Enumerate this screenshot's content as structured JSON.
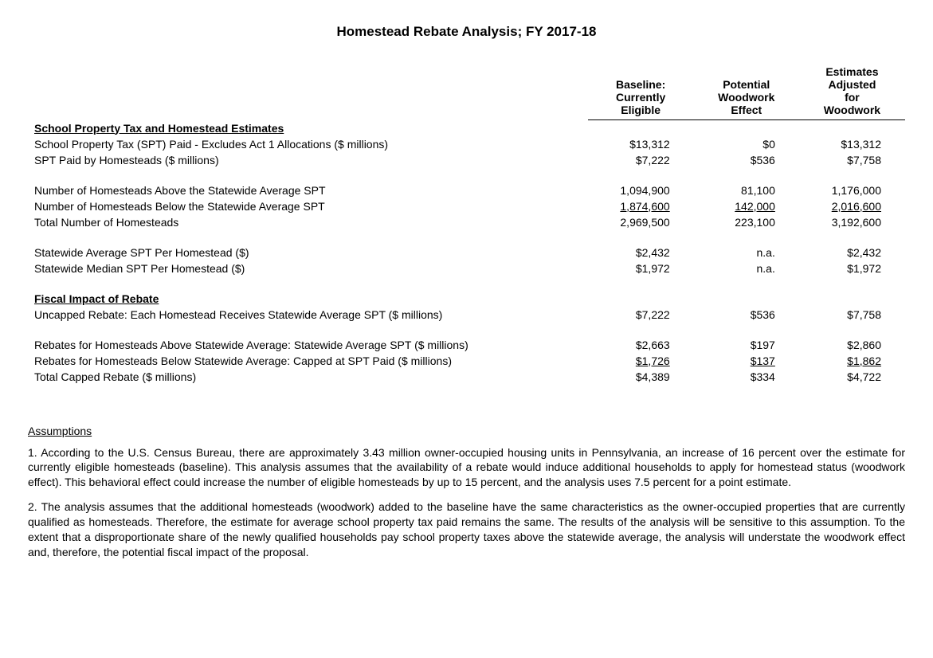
{
  "title": "Homestead Rebate Analysis; FY 2017-18",
  "columns": {
    "c1": "Baseline: Currently Eligible",
    "c2": "Potential Woodwork Effect",
    "c3": "Estimates Adjusted for Woodwork"
  },
  "section1": {
    "header": "School Property Tax and Homestead Estimates",
    "r1": {
      "label": "School Property Tax (SPT) Paid - Excludes Act 1 Allocations ($ millions)",
      "c1": "$13,312",
      "c2": "$0",
      "c3": "$13,312"
    },
    "r2": {
      "label": "SPT Paid by Homesteads ($ millions)",
      "c1": "$7,222",
      "c2": "$536",
      "c3": "$7,758"
    },
    "r3": {
      "label": "Number of Homesteads Above the Statewide Average SPT",
      "c1": "1,094,900",
      "c2": "81,100",
      "c3": "1,176,000"
    },
    "r4": {
      "label": "Number of Homesteads Below the Statewide Average SPT",
      "c1": "1,874,600",
      "c2": "142,000",
      "c3": "2,016,600"
    },
    "r5": {
      "label": "Total Number of Homesteads",
      "c1": "2,969,500",
      "c2": "223,100",
      "c3": "3,192,600"
    },
    "r6": {
      "label": "Statewide Average SPT Per Homestead ($)",
      "c1": "$2,432",
      "c2": "n.a.",
      "c3": "$2,432"
    },
    "r7": {
      "label": "Statewide Median SPT Per Homestead ($)",
      "c1": "$1,972",
      "c2": "n.a.",
      "c3": "$1,972"
    }
  },
  "section2": {
    "header": "Fiscal Impact of Rebate",
    "r1": {
      "label": "Uncapped Rebate: Each Homestead Receives Statewide Average SPT ($ millions)",
      "c1": "$7,222",
      "c2": "$536",
      "c3": "$7,758"
    },
    "r2": {
      "label": "Rebates for Homesteads Above Statewide Average: Statewide Average SPT ($ millions)",
      "c1": "$2,663",
      "c2": "$197",
      "c3": "$2,860"
    },
    "r3": {
      "label": "Rebates for Homesteads Below Statewide Average: Capped at SPT Paid ($ millions)",
      "c1": "$1,726",
      "c2": "$137",
      "c3": "$1,862"
    },
    "r4": {
      "label": "Total Capped Rebate ($ millions)",
      "c1": "$4,389",
      "c2": "$334",
      "c3": "$4,722"
    }
  },
  "assumptions": {
    "title": "Assumptions",
    "p1": "1. According to the U.S. Census Bureau, there are approximately 3.43 million owner-occupied housing units in Pennsylvania, an increase of 16 percent over the estimate for currently eligible homesteads (baseline). This analysis assumes that the availability of a rebate would induce additional households to apply for homestead status (woodwork effect). This behavioral effect could increase the number of eligible homesteads by up to 15 percent, and the analysis uses 7.5 percent for a point estimate.",
    "p2": "2. The analysis assumes that the additional homesteads (woodwork) added to the baseline have the same characteristics as the owner-occupied properties that are currently qualified as homesteads. Therefore, the estimate for average school property tax paid remains the same. The results of the analysis will be sensitive to this assumption. To the extent that a disproportionate share of the newly qualified households pay school property taxes above the statewide average, the analysis will understate the woodwork effect and, therefore, the potential fiscal impact of the proposal."
  }
}
